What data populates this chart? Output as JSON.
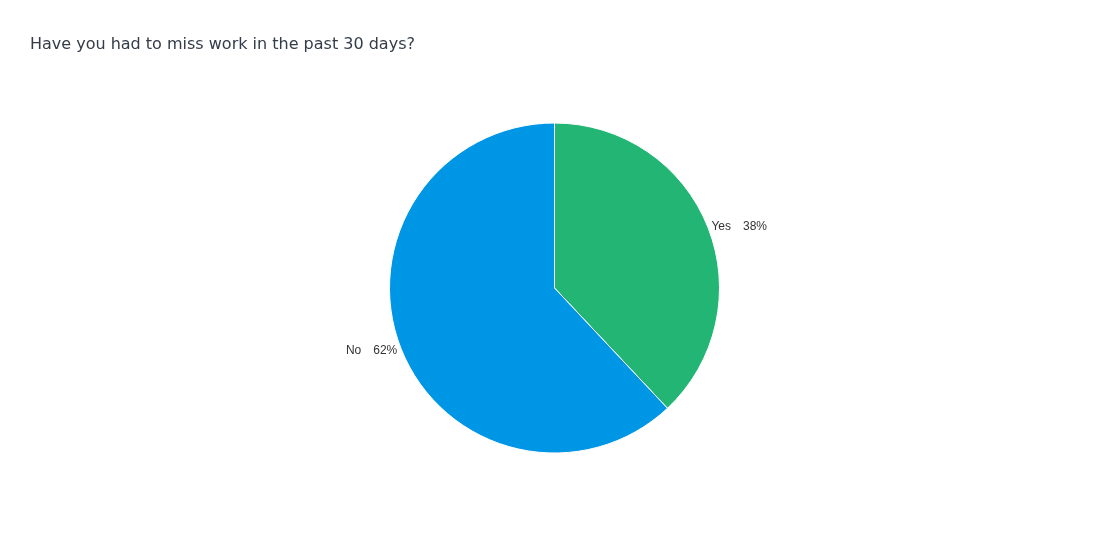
{
  "chart_data": {
    "type": "pie",
    "title": "Have you had to miss work in the past 30 days?",
    "categories": [
      "Yes",
      "No"
    ],
    "values": [
      38,
      62
    ],
    "value_labels": [
      "38%",
      "62%"
    ],
    "colors": [
      "#22b573",
      "#0096e6"
    ],
    "legend": false
  }
}
